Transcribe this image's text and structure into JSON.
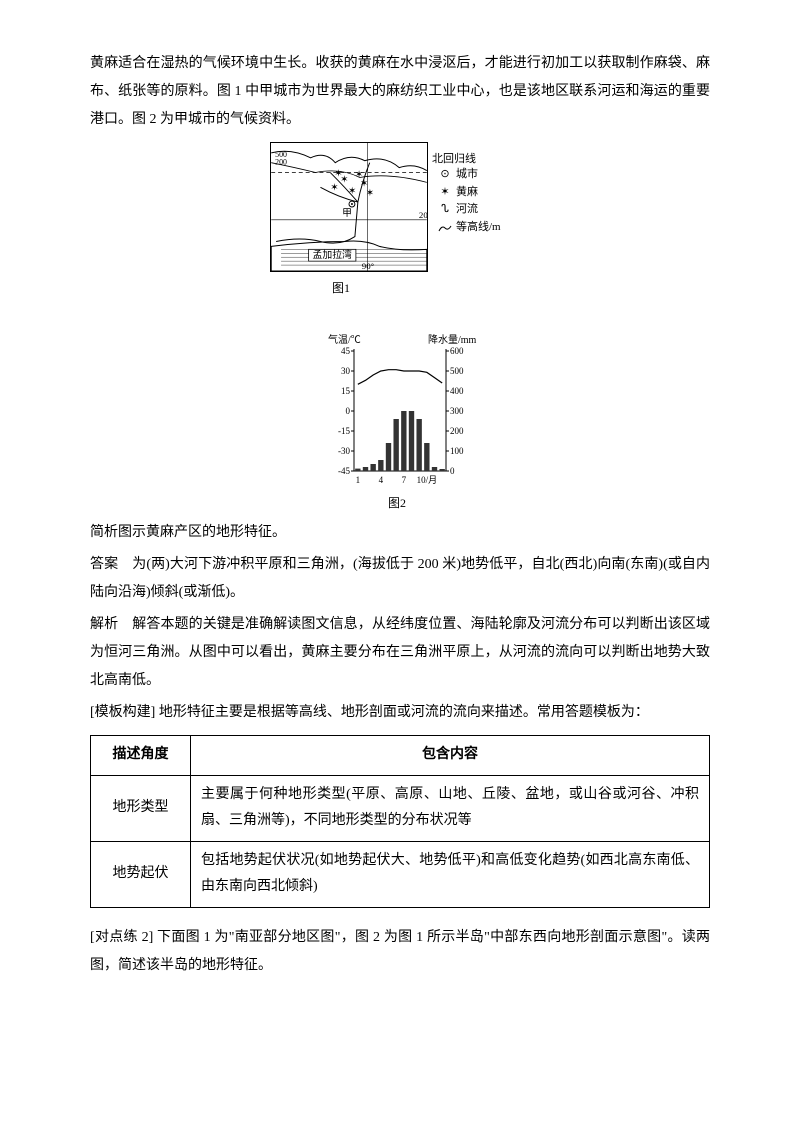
{
  "intro": {
    "p1": "黄麻适合在湿热的气候环境中生长。收获的黄麻在水中浸沤后，才能进行初加工以获取制作麻袋、麻布、纸张等的原料。图 1 中甲城市为世界最大的麻纺织工业中心，也是该地区联系河运和海运的重要港口。图 2 为甲城市的气候资料。"
  },
  "figure1": {
    "caption": "图1",
    "tropic_label": "北回归线",
    "bay_label": "孟加拉湾",
    "city_marker": "甲",
    "contour_200": "200",
    "contour_500": "500",
    "lon_label": "90°",
    "lat_label": "20°",
    "legend": {
      "city": "城市",
      "jute": "黄麻",
      "river": "河流",
      "contour": "等高线/m"
    }
  },
  "figure2": {
    "caption": "图2",
    "temp_label": "气温/℃",
    "precip_label": "降水量/mm",
    "temp_ticks": [
      "45",
      "30",
      "15",
      "0",
      "-15",
      "-30",
      "-45"
    ],
    "precip_ticks": [
      "600",
      "500",
      "400",
      "300",
      "200",
      "100",
      "0"
    ],
    "month_ticks": [
      "1",
      "4",
      "7",
      "10/月"
    ],
    "bar_values": [
      12,
      20,
      35,
      55,
      140,
      260,
      300,
      300,
      260,
      140,
      20,
      10
    ],
    "bar_max": 600,
    "temp_values": [
      20,
      23,
      27,
      30,
      31,
      31,
      30,
      30,
      30,
      29,
      25,
      21
    ],
    "chart_colors": {
      "axis": "#000000",
      "bar": "#333333",
      "line": "#000000",
      "bg": "#ffffff"
    }
  },
  "question": "简析图示黄麻产区的地形特征。",
  "answer": {
    "label": "答案",
    "text": "为(两)大河下游冲积平原和三角洲，(海拔低于 200 米)地势低平，自北(西北)向南(东南)(或自内陆向沿海)倾斜(或渐低)。"
  },
  "analysis": {
    "label": "解析",
    "text": "解答本题的关键是准确解读图文信息，从经纬度位置、海陆轮廓及河流分布可以判断出该区域为恒河三角洲。从图中可以看出，黄麻主要分布在三角洲平原上，从河流的流向可以判断出地势大致北高南低。"
  },
  "template": {
    "label": "[模板构建]",
    "text": "地形特征主要是根据等高线、地形剖面或河流的流向来描述。常用答题模板为："
  },
  "table": {
    "header": {
      "angle": "描述角度",
      "content": "包含内容"
    },
    "rows": [
      {
        "angle": "地形类型",
        "content": "主要属于何种地形类型(平原、高原、山地、丘陵、盆地，或山谷或河谷、冲积扇、三角洲等)，不同地形类型的分布状况等"
      },
      {
        "angle": "地势起伏",
        "content": "包括地势起伏状况(如地势起伏大、地势低平)和高低变化趋势(如西北高东南低、由东南向西北倾斜)"
      }
    ]
  },
  "practice": {
    "label": "[对点练 2]",
    "text": "下面图 1 为\"南亚部分地区图\"，图 2 为图 1 所示半岛\"中部东西向地形剖面示意图\"。读两图，简述该半岛的地形特征。"
  }
}
